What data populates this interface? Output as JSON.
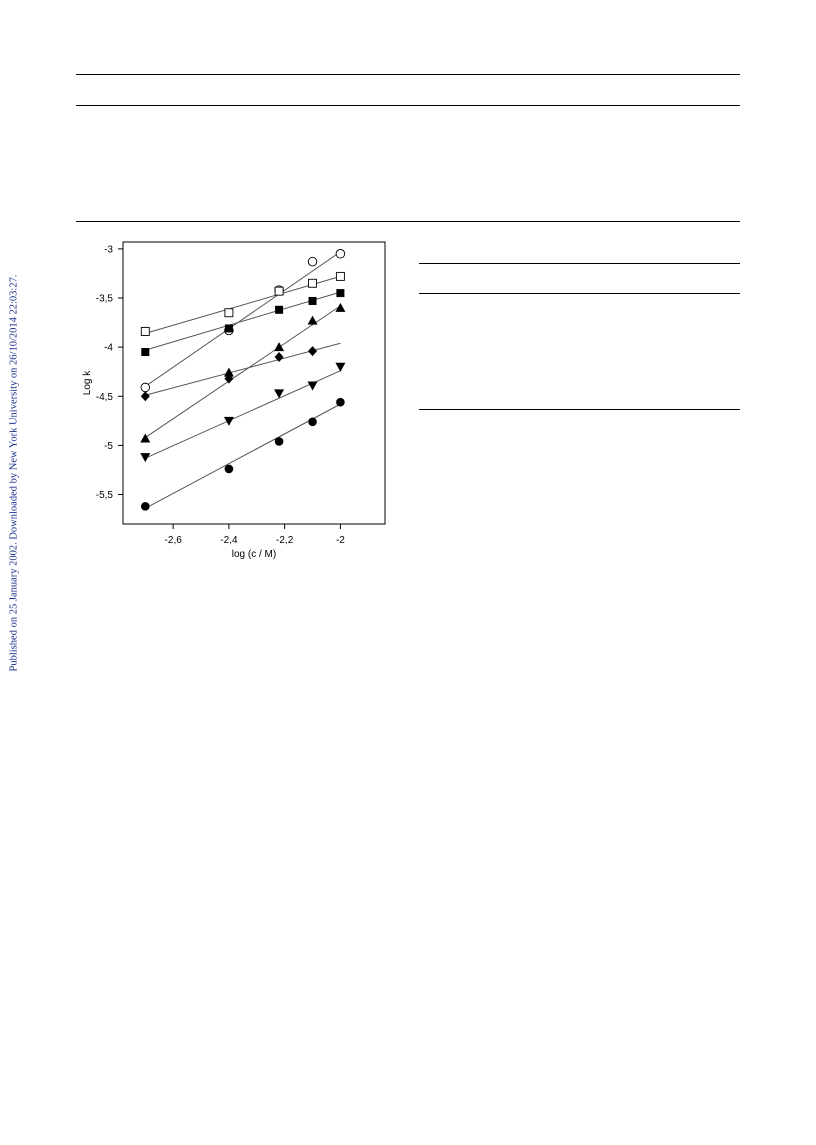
{
  "sidebar": {
    "text": "Published on 25 January 2002. Downloaded by New York University on 26/10/2014 22:03:27.",
    "color": "#1a2f8c"
  },
  "chart_data": {
    "type": "scatter",
    "xlabel": "log (c / M)",
    "ylabel": "Log k",
    "xlim": [
      -2.78,
      -1.84
    ],
    "ylim": [
      -5.8,
      -2.93
    ],
    "xticks": [
      -2.6,
      -2.4,
      -2.2,
      -2.0
    ],
    "xtick_labels": [
      "-2,6",
      "-2,4",
      "-2,2",
      "-2"
    ],
    "yticks": [
      -3.0,
      -3.5,
      -4.0,
      -4.5,
      -5.0,
      -5.5
    ],
    "ytick_labels": [
      "-3",
      "-3,5",
      "-4",
      "-4,5",
      "-5",
      "-5,5"
    ],
    "grid": false,
    "series": [
      {
        "marker": "open-circle",
        "x": [
          -2.7,
          -2.4,
          -2.22,
          -2.1,
          -2.0
        ],
        "y": [
          -4.41,
          -3.83,
          -3.42,
          -3.13,
          -3.05
        ],
        "fit": [
          [
            -2.7,
            -4.4
          ],
          [
            -2.0,
            -3.03
          ]
        ]
      },
      {
        "marker": "open-square",
        "x": [
          -2.7,
          -2.4,
          -2.22,
          -2.1,
          -2.0
        ],
        "y": [
          -3.84,
          -3.65,
          -3.43,
          -3.35,
          -3.28
        ],
        "fit": [
          [
            -2.7,
            -3.86
          ],
          [
            -2.0,
            -3.28
          ]
        ]
      },
      {
        "marker": "filled-square",
        "x": [
          -2.7,
          -2.4,
          -2.22,
          -2.1,
          -2.0
        ],
        "y": [
          -4.05,
          -3.81,
          -3.62,
          -3.53,
          -3.45
        ],
        "fit": [
          [
            -2.7,
            -4.03
          ],
          [
            -2.0,
            -3.44
          ]
        ]
      },
      {
        "marker": "filled-triangle-up",
        "x": [
          -2.7,
          -2.4,
          -2.22,
          -2.1,
          -2.0
        ],
        "y": [
          -4.93,
          -4.26,
          -4.0,
          -3.73,
          -3.6
        ],
        "fit": [
          [
            -2.7,
            -4.92
          ],
          [
            -2.0,
            -3.58
          ]
        ]
      },
      {
        "marker": "filled-diamond",
        "x": [
          -2.7,
          -2.4,
          -2.22,
          -2.1
        ],
        "y": [
          -4.5,
          -4.32,
          -4.1,
          -4.04
        ],
        "fit": [
          [
            -2.7,
            -4.49
          ],
          [
            -2.0,
            -3.96
          ]
        ]
      },
      {
        "marker": "filled-triangle-down",
        "x": [
          -2.7,
          -2.4,
          -2.22,
          -2.1,
          -2.0
        ],
        "y": [
          -5.12,
          -4.75,
          -4.47,
          -4.39,
          -4.2
        ],
        "fit": [
          [
            -2.7,
            -5.13
          ],
          [
            -2.0,
            -4.24
          ]
        ]
      },
      {
        "marker": "filled-circle",
        "x": [
          -2.7,
          -2.4,
          -2.22,
          -2.1,
          -2.0
        ],
        "y": [
          -5.62,
          -5.24,
          -4.96,
          -4.76,
          -4.56
        ],
        "fit": [
          [
            -2.7,
            -5.64
          ],
          [
            -2.0,
            -4.58
          ]
        ]
      }
    ]
  }
}
